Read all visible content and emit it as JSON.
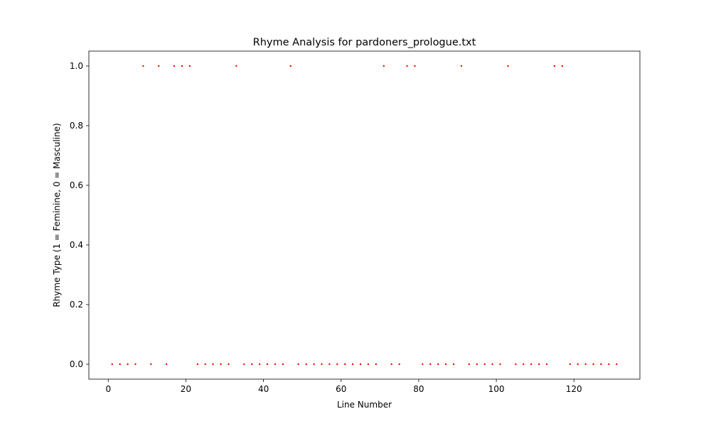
{
  "chart_data": {
    "type": "scatter",
    "title": "Rhyme Analysis for pardoners_prologue.txt",
    "xlabel": "Line Number",
    "ylabel": "Rhyme Type (1 = Feminine, 0 = Masculine)",
    "xlim": [
      -5,
      137
    ],
    "ylim": [
      -0.05,
      1.05
    ],
    "xticks": [
      0,
      20,
      40,
      60,
      80,
      100,
      120
    ],
    "yticks": [
      0.0,
      0.2,
      0.4,
      0.6,
      0.8,
      1.0
    ],
    "xtick_labels": [
      "0",
      "20",
      "40",
      "60",
      "80",
      "100",
      "120"
    ],
    "ytick_labels": [
      "0.0",
      "0.2",
      "0.4",
      "0.6",
      "0.8",
      "1.0"
    ],
    "grid": false,
    "legend": "none",
    "marker_color": "#ff0000",
    "series": [
      {
        "x": [
          1,
          3,
          5,
          7,
          9,
          11,
          13,
          15,
          17,
          19,
          21,
          23,
          25,
          27,
          29,
          31,
          33,
          35,
          37,
          39,
          41,
          43,
          45,
          47,
          49,
          51,
          53,
          55,
          57,
          59,
          61,
          63,
          65,
          67,
          69,
          71,
          73,
          75,
          77,
          79,
          81,
          83,
          85,
          87,
          89,
          91,
          93,
          95,
          97,
          99,
          101,
          103,
          105,
          107,
          109,
          111,
          113,
          115,
          117,
          119,
          121,
          123,
          125,
          127,
          129,
          131
        ],
        "y": [
          0,
          0,
          0,
          0,
          1,
          0,
          1,
          0,
          1,
          1,
          1,
          0,
          0,
          0,
          0,
          0,
          1,
          0,
          0,
          0,
          0,
          0,
          0,
          1,
          0,
          0,
          0,
          0,
          0,
          0,
          0,
          0,
          0,
          0,
          0,
          1,
          0,
          0,
          1,
          1,
          0,
          0,
          0,
          0,
          0,
          1,
          0,
          0,
          0,
          0,
          0,
          1,
          0,
          0,
          0,
          0,
          0,
          1,
          1,
          0,
          0,
          0,
          0,
          0,
          0,
          0
        ]
      }
    ]
  }
}
